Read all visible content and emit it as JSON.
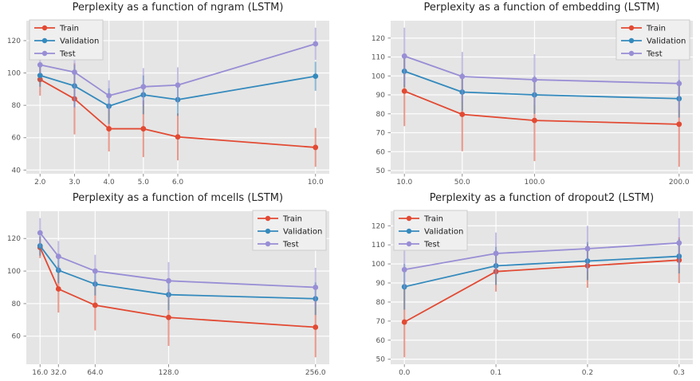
{
  "style": {
    "figure_background": "#ffffff",
    "panel_background": "#e5e5e5",
    "grid_color": "#fdfdfd",
    "tick_color": "#8e8e8e",
    "tick_label_color": "#555555",
    "title_color": "#262626",
    "legend_background": "#efefef",
    "legend_border": "#cccccc",
    "train_color": "#e24a33",
    "validation_color": "#348abd",
    "test_color": "#988ed5"
  },
  "chart_data": [
    {
      "type": "line",
      "title": "Perplexity as a function of ngram (LSTM)",
      "x_param": "ngram",
      "x": [
        2,
        3,
        4,
        5,
        6,
        10
      ],
      "x_tick_labels": [
        "2.0",
        "3.0",
        "4.0",
        "5.0",
        "6.0",
        "10.0"
      ],
      "y_ticks": [
        40,
        60,
        80,
        100,
        120
      ],
      "grid": true,
      "legend_position": "upper-left",
      "series": [
        {
          "name": "Train",
          "color": "#e24a33",
          "values": [
            96,
            84,
            65.5,
            65.5,
            60.5,
            54
          ],
          "err": [
            10,
            22,
            14,
            17.5,
            14.5,
            12
          ]
        },
        {
          "name": "Validation",
          "color": "#348abd",
          "values": [
            98.5,
            92,
            79.5,
            86.5,
            83.5,
            98
          ],
          "err": [
            7,
            13,
            11,
            12,
            10,
            9
          ]
        },
        {
          "name": "Test",
          "color": "#988ed5",
          "values": [
            105,
            100.5,
            86,
            91.5,
            92.5,
            118
          ],
          "err": [
            5.5,
            22,
            9.5,
            11.5,
            11,
            10
          ]
        }
      ]
    },
    {
      "type": "line",
      "title": "Perplexity as a function of embedding (LSTM)",
      "x_param": "embedding",
      "x": [
        10,
        50,
        100,
        200
      ],
      "x_tick_labels": [
        "10.0",
        "50.0",
        "100.0",
        "200.0"
      ],
      "y_ticks": [
        50,
        60,
        70,
        80,
        90,
        100,
        110,
        120
      ],
      "grid": true,
      "legend_position": "upper-right",
      "series": [
        {
          "name": "Train",
          "color": "#e24a33",
          "values": [
            92,
            79.7,
            76.5,
            74.5
          ],
          "err": [
            18.5,
            19.5,
            21.5,
            22.5
          ]
        },
        {
          "name": "Validation",
          "color": "#348abd",
          "values": [
            102.5,
            91.5,
            90,
            88
          ],
          "err": [
            8.5,
            10,
            10,
            10
          ]
        },
        {
          "name": "Test",
          "color": "#988ed5",
          "values": [
            110.5,
            99.7,
            98,
            96
          ],
          "err": [
            15,
            13,
            13.5,
            14
          ]
        }
      ]
    },
    {
      "type": "line",
      "title": "Perplexity as a function of mcells (LSTM)",
      "x_param": "mcells",
      "x": [
        16,
        32,
        64,
        128,
        256
      ],
      "x_tick_labels": [
        "16.0",
        "32.0",
        "64.0",
        "128.0",
        "256.0"
      ],
      "y_ticks": [
        60,
        80,
        100,
        120
      ],
      "grid": true,
      "legend_position": "upper-right",
      "series": [
        {
          "name": "Train",
          "color": "#e24a33",
          "values": [
            114.5,
            89,
            79,
            71.5,
            65.5
          ],
          "err": [
            6.5,
            14.5,
            15.5,
            17.5,
            18.5
          ]
        },
        {
          "name": "Validation",
          "color": "#348abd",
          "values": [
            115.5,
            100.5,
            92,
            85.5,
            83
          ],
          "err": [
            6,
            8,
            7,
            9.5,
            10
          ]
        },
        {
          "name": "Test",
          "color": "#988ed5",
          "values": [
            123.5,
            109,
            100,
            94,
            90
          ],
          "err": [
            9,
            9.5,
            10,
            11.5,
            12
          ]
        }
      ]
    },
    {
      "type": "line",
      "title": "Perplexity as a function of dropout2 (LSTM)",
      "x_param": "dropout2",
      "x": [
        0.0,
        0.1,
        0.2,
        0.3
      ],
      "x_tick_labels": [
        "0.0",
        "0.1",
        "0.2",
        "0.3"
      ],
      "y_ticks": [
        50,
        60,
        70,
        80,
        90,
        100,
        110,
        120
      ],
      "grid": true,
      "legend_position": "upper-left",
      "series": [
        {
          "name": "Train",
          "color": "#e24a33",
          "values": [
            69.5,
            96,
            99,
            102
          ],
          "err": [
            18.5,
            10.5,
            11.5,
            12
          ]
        },
        {
          "name": "Validation",
          "color": "#348abd",
          "values": [
            88,
            99,
            101.5,
            104
          ],
          "err": [
            12,
            10,
            10,
            9
          ]
        },
        {
          "name": "Test",
          "color": "#988ed5",
          "values": [
            97,
            105.5,
            108,
            111
          ],
          "err": [
            10,
            11,
            12,
            13
          ]
        }
      ]
    }
  ]
}
